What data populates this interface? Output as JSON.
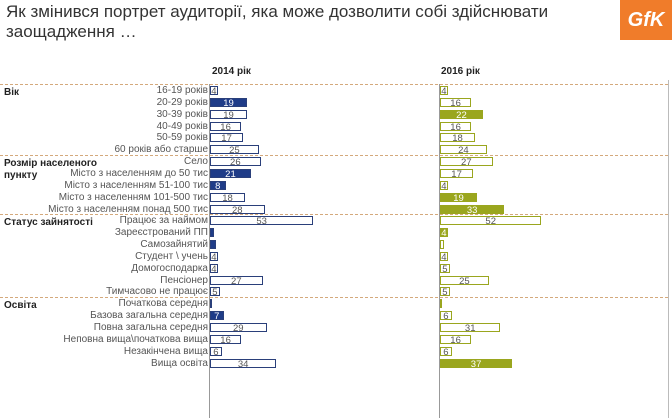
{
  "title": "Як змінився портрет аудиторії, яка може дозволити собі здійснювати заощадження …",
  "logo": "GfK",
  "colors": {
    "y2014": "#1f3c88",
    "y2016": "#9aa61e"
  },
  "chart_data": {
    "type": "bar",
    "series_names": [
      "2014 рік",
      "2016 рік"
    ],
    "groups": [
      {
        "name": "Вік",
        "rows": [
          {
            "label": "16-19 років",
            "v14": 4,
            "v16": 4,
            "f14": false,
            "f16": false
          },
          {
            "label": "20-29 років",
            "v14": 19,
            "v16": 16,
            "f14": true,
            "f16": false
          },
          {
            "label": "30-39 років",
            "v14": 19,
            "v16": 22,
            "f14": false,
            "f16": true
          },
          {
            "label": "40-49 років",
            "v14": 16,
            "v16": 16,
            "f14": false,
            "f16": false
          },
          {
            "label": "50-59 років",
            "v14": 17,
            "v16": 18,
            "f14": false,
            "f16": false
          },
          {
            "label": "60 років або старше",
            "v14": 25,
            "v16": 24,
            "f14": false,
            "f16": false
          }
        ]
      },
      {
        "name": "Розмір населеного пункту",
        "rows": [
          {
            "label": "Село",
            "v14": 26,
            "v16": 27,
            "f14": false,
            "f16": false
          },
          {
            "label": "Місто з населенням до 50 тис",
            "v14": 21,
            "v16": 17,
            "f14": true,
            "f16": false
          },
          {
            "label": "Місто з населенням 51-100 тис",
            "v14": 8,
            "v16": 4,
            "f14": true,
            "f16": false
          },
          {
            "label": "Місто з населенням 101-500 тис",
            "v14": 18,
            "v16": 19,
            "f14": false,
            "f16": true
          },
          {
            "label": "Місто з населенням понад 500 тис",
            "v14": 28,
            "v16": 33,
            "f14": false,
            "f16": true
          }
        ]
      },
      {
        "name": "Статус зайнятості",
        "rows": [
          {
            "label": "Працює за наймом",
            "v14": 53,
            "v16": 52,
            "f14": false,
            "f16": false
          },
          {
            "label": "Зареєстрований ПП",
            "v14": 2,
            "v16": 4,
            "f14": true,
            "f16": true
          },
          {
            "label": "Самозайнятий",
            "v14": 3,
            "v16": 2,
            "f14": true,
            "f16": false
          },
          {
            "label": "Студент \\ учень",
            "v14": 4,
            "v16": 4,
            "f14": false,
            "f16": false
          },
          {
            "label": "Домогосподарка",
            "v14": 4,
            "v16": 5,
            "f14": false,
            "f16": false
          },
          {
            "label": "Пенсіонер",
            "v14": 27,
            "v16": 25,
            "f14": false,
            "f16": false
          },
          {
            "label": "Тимчасово не працює",
            "v14": 5,
            "v16": 5,
            "f14": false,
            "f16": false
          }
        ]
      },
      {
        "name": "Освіта",
        "rows": [
          {
            "label": "Початкова середня",
            "v14": 1,
            "v16": 0.5,
            "f14": false,
            "f16": false
          },
          {
            "label": "Базова загальна середня",
            "v14": 7,
            "v16": 6,
            "f14": true,
            "f16": false
          },
          {
            "label": "Повна загальна середня",
            "v14": 29,
            "v16": 31,
            "f14": false,
            "f16": false
          },
          {
            "label": "Неповна вища\\початкова вища",
            "v14": 16,
            "v16": 16,
            "f14": false,
            "f16": false
          },
          {
            "label": "Незакінчена вища",
            "v14": 6,
            "v16": 6,
            "f14": false,
            "f16": false
          },
          {
            "label": "Вища освіта",
            "v14": 34,
            "v16": 37,
            "f14": false,
            "f16": true
          }
        ]
      }
    ]
  }
}
